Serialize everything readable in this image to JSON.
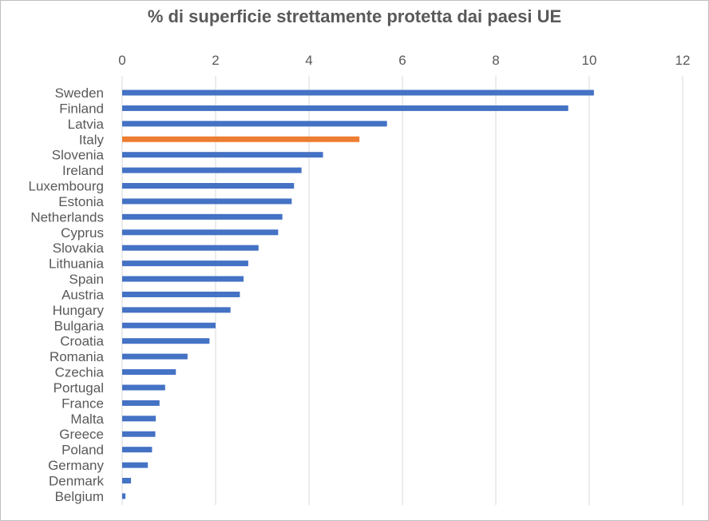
{
  "chart_data": {
    "type": "bar",
    "orientation": "horizontal",
    "title": "% di superficie strettamente protetta dai paesi UE",
    "xlabel": "",
    "ylabel": "",
    "xlim": [
      0,
      12
    ],
    "x_ticks": [
      "0",
      "2",
      "4",
      "6",
      "8",
      "10",
      "12"
    ],
    "x_axis_position": "top",
    "grid": "vertical",
    "legend": "none",
    "categories": [
      "Sweden",
      "Finland",
      "Latvia",
      "Italy",
      "Slovenia",
      "Ireland",
      "Luxembourg",
      "Estonia",
      "Netherlands",
      "Cyprus",
      "Slovakia",
      "Lithuania",
      "Spain",
      "Austria",
      "Hungary",
      "Bulgaria",
      "Croatia",
      "Romania",
      "Czechia",
      "Portugal",
      "France",
      "Malta",
      "Greece",
      "Poland",
      "Germany",
      "Denmark",
      "Belgium"
    ],
    "values": [
      10.1,
      9.55,
      5.67,
      5.08,
      4.3,
      3.84,
      3.68,
      3.63,
      3.43,
      3.34,
      2.92,
      2.7,
      2.6,
      2.52,
      2.32,
      2.0,
      1.87,
      1.4,
      1.15,
      0.92,
      0.8,
      0.72,
      0.71,
      0.64,
      0.55,
      0.19,
      0.07
    ],
    "colors": {
      "default": "#4472c4",
      "highlight": "#ed7d31",
      "highlight_category": "Italy",
      "grid": "#d9d9d9",
      "text": "#595959"
    }
  }
}
